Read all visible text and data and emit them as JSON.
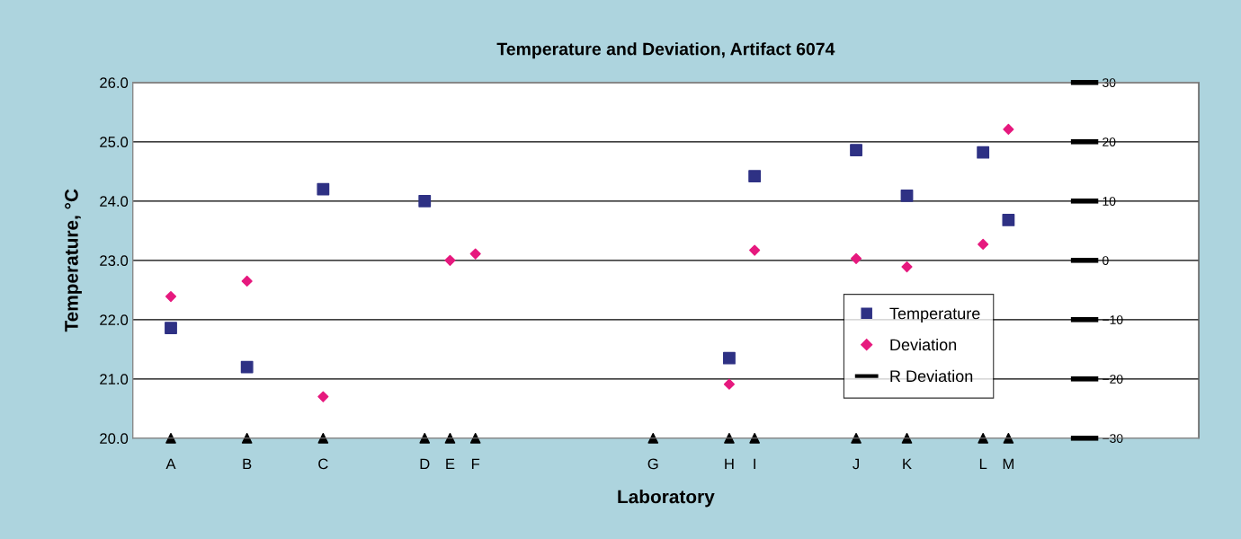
{
  "chart_data": {
    "type": "scatter",
    "title": "Temperature and Deviation, Artifact 6074",
    "xlabel": "Laboratory",
    "ylabel": "Temperature, °C",
    "y2label": null,
    "categories": [
      null,
      "A",
      null,
      null,
      "B",
      null,
      null,
      "C",
      null,
      null,
      null,
      "D",
      "E",
      "F",
      null,
      null,
      null,
      null,
      null,
      null,
      "G",
      null,
      null,
      "H",
      "I",
      null,
      null,
      null,
      "J",
      null,
      "K",
      null,
      null,
      "L",
      "M",
      null,
      null,
      null,
      null,
      null,
      null,
      null
    ],
    "ylim": [
      20,
      26
    ],
    "yticks": [
      {
        "value": 20,
        "label": "20.0"
      },
      {
        "value": 21,
        "label": "21.0"
      },
      {
        "value": 22,
        "label": "22.0"
      },
      {
        "value": 23,
        "label": "23.0"
      },
      {
        "value": 24,
        "label": "24.0"
      },
      {
        "value": 25,
        "label": "25.0"
      },
      {
        "value": 26,
        "label": "26.0"
      }
    ],
    "y2lim": [
      -30,
      30
    ],
    "y2ticks": [
      {
        "value": -30,
        "label": "−30"
      },
      {
        "value": -20,
        "label": "−20"
      },
      {
        "value": -10,
        "label": "−10"
      },
      0,
      10,
      20,
      30
    ],
    "grid": "y",
    "legend": "lower right",
    "series": [
      {
        "name": "Temperature",
        "color": "#2e3184",
        "marker": "square",
        "values": [
          null,
          21.86,
          null,
          null,
          21.2,
          null,
          null,
          24.2,
          null,
          null,
          null,
          24.0,
          null,
          null,
          null,
          null,
          null,
          null,
          null,
          null,
          null,
          null,
          null,
          21.35,
          24.42,
          null,
          null,
          null,
          24.86,
          null,
          24.09,
          null,
          null,
          24.82,
          23.68,
          null,
          null,
          null,
          null,
          null,
          null,
          null
        ]
      },
      {
        "name": "Deviation",
        "color": "#e6197e",
        "marker": "diamond",
        "axis": "y2",
        "values": [
          null,
          -6.1,
          null,
          null,
          -3.5,
          null,
          null,
          -23.0,
          null,
          null,
          null,
          null,
          0,
          1.1,
          null,
          null,
          null,
          null,
          null,
          null,
          null,
          null,
          null,
          -20.9,
          1.7,
          null,
          null,
          null,
          0.3,
          null,
          -1.1,
          null,
          null,
          2.7,
          22.1,
          null,
          null,
          null,
          null,
          null,
          null,
          null
        ]
      },
      {
        "name": "R Deviation",
        "color": "#000000",
        "type": "line",
        "marker": "none",
        "axis": "y2",
        "values": [
          null,
          null,
          null,
          null,
          null,
          null,
          null,
          null,
          null,
          null,
          null,
          null,
          null,
          null,
          null,
          null,
          null,
          null,
          null,
          null,
          null,
          null,
          null,
          null,
          null,
          null,
          null,
          null,
          null,
          null,
          null,
          null,
          null,
          null,
          null,
          null,
          null,
          null,
          null,
          null,
          null,
          null
        ]
      }
    ]
  }
}
